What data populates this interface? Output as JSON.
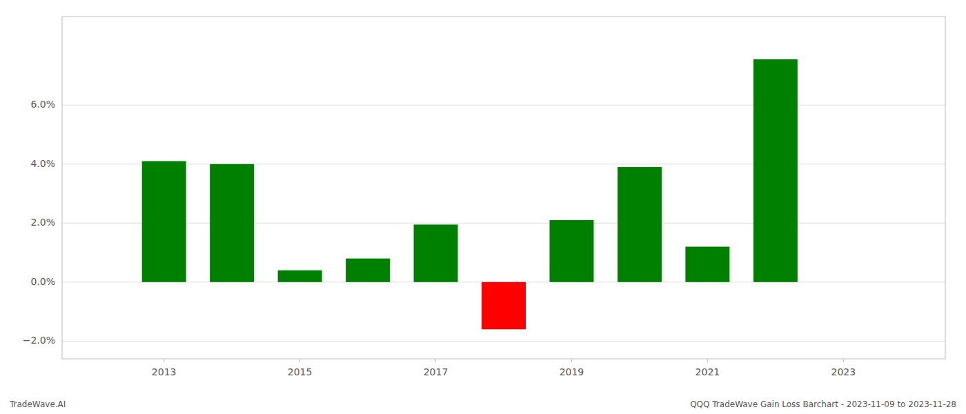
{
  "chart_data": {
    "type": "bar",
    "x": [
      2013,
      2014,
      2015,
      2016,
      2017,
      2018,
      2019,
      2020,
      2021,
      2022,
      2023
    ],
    "values": [
      0.041,
      0.04,
      0.004,
      0.008,
      0.0195,
      -0.016,
      0.021,
      0.039,
      0.012,
      0.0755,
      0.0
    ],
    "colors": [
      "#008000",
      "#008000",
      "#008000",
      "#008000",
      "#008000",
      "#ff0000",
      "#008000",
      "#008000",
      "#008000",
      "#008000",
      "#008000"
    ],
    "xlim": [
      2011.5,
      2024.5
    ],
    "xticks": [
      2013,
      2015,
      2017,
      2019,
      2021,
      2023
    ],
    "ylim": [
      -0.026,
      0.09
    ],
    "yticks": [
      {
        "value": -0.02,
        "label": "−2.0%"
      },
      {
        "value": 0.0,
        "label": "0.0%"
      },
      {
        "value": 0.02,
        "label": "2.0%"
      },
      {
        "value": 0.04,
        "label": "4.0%"
      },
      {
        "value": 0.06,
        "label": "6.0%"
      }
    ],
    "grid": true,
    "annotations": [
      "TradeWave.AI",
      "QQQ TradeWave Gain Loss Barchart - 2023-11-09 to 2023-11-28"
    ]
  }
}
